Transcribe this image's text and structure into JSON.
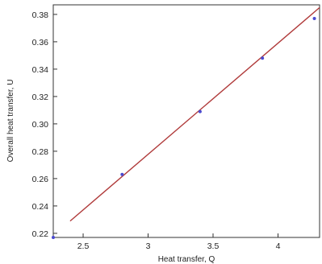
{
  "chart_data": {
    "type": "scatter",
    "title": "",
    "xlabel": "Heat transfer, Q",
    "ylabel": "Overall heat transfer, U",
    "xlim": [
      2.27,
      4.32
    ],
    "ylim": [
      0.217,
      0.387
    ],
    "xticks": [
      2.5,
      3,
      3.5,
      4
    ],
    "xtick_labels": [
      "2.5",
      "3",
      "3.5",
      "4"
    ],
    "yticks": [
      0.22,
      0.24,
      0.26,
      0.28,
      0.3,
      0.32,
      0.34,
      0.36,
      0.38
    ],
    "ytick_labels": [
      "0.22",
      "0.24",
      "0.26",
      "0.28",
      "0.30",
      "0.32",
      "0.34",
      "0.36",
      "0.38"
    ],
    "grid": false,
    "legend": "none",
    "series": [
      {
        "kind": "points",
        "color": "#4a4ad0",
        "x": [
          2.27,
          2.8,
          3.4,
          3.88,
          4.28
        ],
        "y": [
          0.217,
          0.263,
          0.309,
          0.348,
          0.377
        ]
      },
      {
        "kind": "fit-line",
        "color": "#b03a3a",
        "x": [
          2.4,
          4.32
        ],
        "y": [
          0.229,
          0.385
        ]
      }
    ]
  }
}
